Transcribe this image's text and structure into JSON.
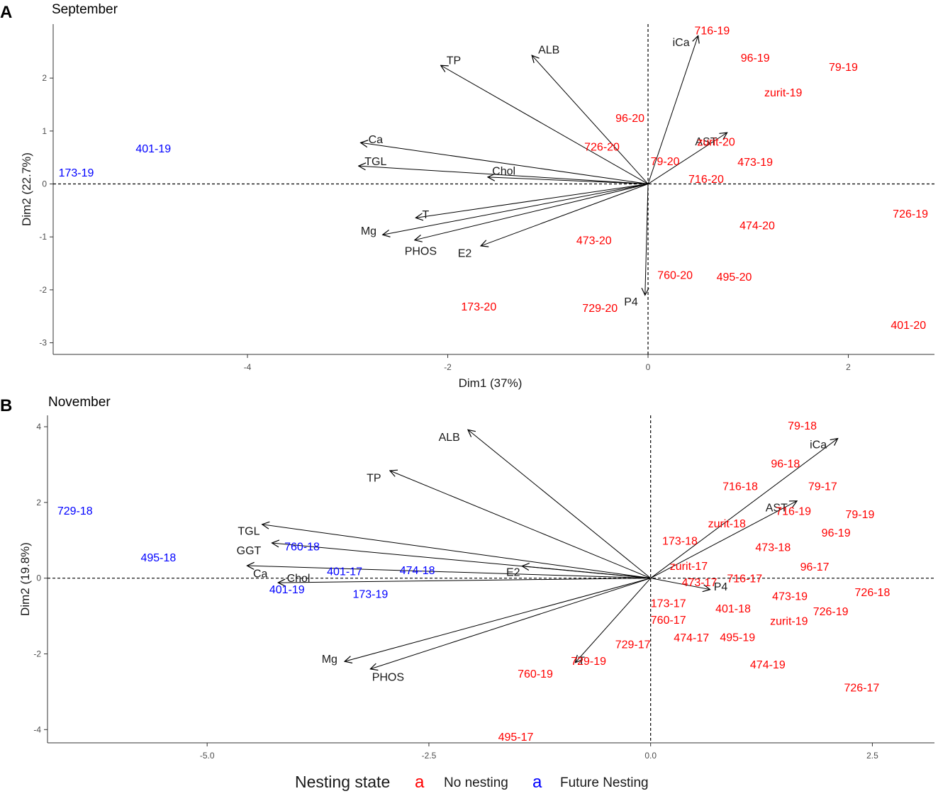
{
  "colors": {
    "no_nesting": "#ff0000",
    "future_nesting": "#0000ff",
    "arrow": "#000000"
  },
  "legend": {
    "title": "Nesting state",
    "key_glyph": "a",
    "items": [
      {
        "label": "No nesting",
        "color": "#ff0000"
      },
      {
        "label": "Future Nesting",
        "color": "#0000ff"
      }
    ]
  },
  "chart_data": [
    {
      "type": "scatter",
      "panel_letter": "A",
      "title": "September",
      "xlabel": "Dim1 (37%)",
      "ylabel": "Dim2 (22.7%)",
      "xlim": [
        -5.94,
        2.86
      ],
      "ylim": [
        -3.22,
        3.02
      ],
      "xticks": [
        -4,
        -2,
        0,
        2
      ],
      "xtick_labels": [
        "-4",
        "-2",
        "0",
        "2"
      ],
      "yticks": [
        -3,
        -2,
        -1,
        0,
        1,
        2
      ],
      "ytick_labels": [
        "-3",
        "-2",
        "-1",
        "0",
        "1",
        "2"
      ],
      "variables": [
        {
          "name": "iCa",
          "x": 0.5,
          "y": 2.8,
          "lx": 0.33,
          "ly": 2.67
        },
        {
          "name": "ALB",
          "x": -1.16,
          "y": 2.43,
          "lx": -0.99,
          "ly": 2.53
        },
        {
          "name": "TP",
          "x": -2.07,
          "y": 2.24,
          "lx": -1.94,
          "ly": 2.33
        },
        {
          "name": "Ca",
          "x": -2.87,
          "y": 0.78,
          "lx": -2.72,
          "ly": 0.84
        },
        {
          "name": "TGL",
          "x": -2.89,
          "y": 0.34,
          "lx": -2.72,
          "ly": 0.42
        },
        {
          "name": "Chol",
          "x": -1.6,
          "y": 0.13,
          "lx": -1.44,
          "ly": 0.24
        },
        {
          "name": "AST",
          "x": 0.79,
          "y": 0.97,
          "lx": 0.58,
          "ly": 0.8
        },
        {
          "name": "T",
          "x": -2.32,
          "y": -0.64,
          "lx": -2.22,
          "ly": -0.58
        },
        {
          "name": "Mg",
          "x": -2.65,
          "y": -0.96,
          "lx": -2.79,
          "ly": -0.89
        },
        {
          "name": "PHOS",
          "x": -2.33,
          "y": -1.06,
          "lx": -2.27,
          "ly": -1.27
        },
        {
          "name": "E2",
          "x": -1.67,
          "y": -1.17,
          "lx": -1.83,
          "ly": -1.31
        },
        {
          "name": "P4",
          "x": -0.03,
          "y": -2.1,
          "lx": -0.17,
          "ly": -2.23
        }
      ],
      "observations": [
        {
          "label": "716-19",
          "x": 0.64,
          "y": 2.89,
          "group": "No nesting"
        },
        {
          "label": "96-19",
          "x": 1.07,
          "y": 2.38,
          "group": "No nesting"
        },
        {
          "label": "79-19",
          "x": 1.95,
          "y": 2.2,
          "group": "No nesting"
        },
        {
          "label": "zurit-19",
          "x": 1.35,
          "y": 1.72,
          "group": "No nesting"
        },
        {
          "name_hint": "",
          "label": "96-20",
          "x": -0.18,
          "y": 1.24,
          "group": "No nesting"
        },
        {
          "label": "726-20",
          "x": -0.46,
          "y": 0.7,
          "group": "No nesting"
        },
        {
          "label": "zurit-20",
          "x": 0.68,
          "y": 0.79,
          "group": "No nesting"
        },
        {
          "label": "79-20",
          "x": 0.17,
          "y": 0.42,
          "group": "No nesting"
        },
        {
          "label": "473-19",
          "x": 1.07,
          "y": 0.41,
          "group": "No nesting"
        },
        {
          "label": "716-20",
          "x": 0.58,
          "y": 0.09,
          "group": "No nesting"
        },
        {
          "label": "726-19",
          "x": 2.62,
          "y": -0.57,
          "group": "No nesting"
        },
        {
          "label": "474-20",
          "x": 1.09,
          "y": -0.79,
          "group": "No nesting"
        },
        {
          "label": "473-20",
          "x": -0.54,
          "y": -1.07,
          "group": "No nesting"
        },
        {
          "label": "760-20",
          "x": 0.27,
          "y": -1.73,
          "group": "No nesting"
        },
        {
          "label": "495-20",
          "x": 0.86,
          "y": -1.76,
          "group": "No nesting"
        },
        {
          "label": "173-20",
          "x": -1.69,
          "y": -2.32,
          "group": "No nesting"
        },
        {
          "label": "729-20",
          "x": -0.48,
          "y": -2.35,
          "group": "No nesting"
        },
        {
          "label": "401-20",
          "x": 2.6,
          "y": -2.67,
          "group": "No nesting"
        },
        {
          "label": "401-19",
          "x": -4.94,
          "y": 0.66,
          "group": "Future Nesting"
        },
        {
          "label": "173-19",
          "x": -5.71,
          "y": 0.21,
          "group": "Future Nesting"
        }
      ]
    },
    {
      "type": "scatter",
      "panel_letter": "B",
      "title": "November",
      "xlabel": "",
      "ylabel": "Dim2 (19.8%)",
      "xlim": [
        -6.8,
        3.2
      ],
      "ylim": [
        -4.35,
        4.3
      ],
      "xticks": [
        -5,
        -2.5,
        0,
        2.5
      ],
      "xtick_labels": [
        "-5.0",
        "-2.5",
        "0.0",
        "2.5"
      ],
      "yticks": [
        -4,
        -2,
        0,
        2,
        4
      ],
      "ytick_labels": [
        "-4",
        "-2",
        "0",
        "2",
        "4"
      ],
      "variables": [
        {
          "name": "iCa",
          "x": 2.11,
          "y": 3.69,
          "lx": 1.89,
          "ly": 3.52
        },
        {
          "name": "ALB",
          "x": -2.06,
          "y": 3.92,
          "lx": -2.27,
          "ly": 3.72
        },
        {
          "name": "TP",
          "x": -2.94,
          "y": 2.84,
          "lx": -3.12,
          "ly": 2.64
        },
        {
          "name": "TGL",
          "x": -4.38,
          "y": 1.42,
          "lx": -4.53,
          "ly": 1.24
        },
        {
          "name": "GGT",
          "x": -4.27,
          "y": 0.93,
          "lx": -4.53,
          "ly": 0.72
        },
        {
          "name": "Ca",
          "x": -4.55,
          "y": 0.33,
          "lx": -4.4,
          "ly": 0.12
        },
        {
          "name": "Chol",
          "x": -4.2,
          "y": -0.12,
          "lx": -3.97,
          "ly": -0.01
        },
        {
          "name": "E2",
          "x": -1.45,
          "y": 0.32,
          "lx": -1.55,
          "ly": 0.15
        },
        {
          "name": "AST",
          "x": 1.65,
          "y": 2.04,
          "lx": 1.42,
          "ly": 1.86
        },
        {
          "name": "P4",
          "x": 0.67,
          "y": -0.3,
          "lx": 0.79,
          "ly": -0.23
        },
        {
          "name": "Mg",
          "x": -3.45,
          "y": -2.2,
          "lx": -3.62,
          "ly": -2.14
        },
        {
          "name": "PHOS",
          "x": -3.16,
          "y": -2.4,
          "lx": -2.96,
          "ly": -2.62
        },
        {
          "name": "T",
          "x": -0.85,
          "y": -2.23,
          "lx": -0.78,
          "ly": -2.19
        }
      ],
      "observations": [
        {
          "label": "79-18",
          "x": 1.71,
          "y": 4.02,
          "group": "No nesting"
        },
        {
          "label": "96-18",
          "x": 1.52,
          "y": 3.02,
          "group": "No nesting"
        },
        {
          "label": "716-18",
          "x": 1.01,
          "y": 2.42,
          "group": "No nesting"
        },
        {
          "label": "79-17",
          "x": 1.94,
          "y": 2.42,
          "group": "No nesting"
        },
        {
          "label": "716-19",
          "x": 1.61,
          "y": 1.76,
          "group": "No nesting"
        },
        {
          "label": "79-19",
          "x": 2.36,
          "y": 1.68,
          "group": "No nesting"
        },
        {
          "label": "zurit-18",
          "x": 0.86,
          "y": 1.44,
          "group": "No nesting"
        },
        {
          "label": "96-19",
          "x": 2.09,
          "y": 1.19,
          "group": "No nesting"
        },
        {
          "label": "173-18",
          "x": 0.33,
          "y": 0.98,
          "group": "No nesting"
        },
        {
          "label": "473-18",
          "x": 1.38,
          "y": 0.81,
          "group": "No nesting"
        },
        {
          "label": "zurit-17",
          "x": 0.43,
          "y": 0.31,
          "group": "No nesting"
        },
        {
          "label": "96-17",
          "x": 1.85,
          "y": 0.29,
          "group": "No nesting"
        },
        {
          "label": "716-17",
          "x": 1.06,
          "y": -0.02,
          "group": "No nesting"
        },
        {
          "label": "473-17",
          "x": 0.55,
          "y": -0.12,
          "group": "No nesting"
        },
        {
          "label": "726-18",
          "x": 2.5,
          "y": -0.38,
          "group": "No nesting"
        },
        {
          "label": "473-19",
          "x": 1.57,
          "y": -0.48,
          "group": "No nesting"
        },
        {
          "label": "173-17",
          "x": 0.2,
          "y": -0.67,
          "group": "No nesting"
        },
        {
          "label": "401-18",
          "x": 0.93,
          "y": -0.81,
          "group": "No nesting"
        },
        {
          "label": "726-19",
          "x": 2.03,
          "y": -0.89,
          "group": "No nesting"
        },
        {
          "label": "760-17",
          "x": 0.2,
          "y": -1.11,
          "group": "No nesting"
        },
        {
          "label": "zurit-19",
          "x": 1.56,
          "y": -1.14,
          "group": "No nesting"
        },
        {
          "label": "474-17",
          "x": 0.46,
          "y": -1.58,
          "group": "No nesting"
        },
        {
          "label": "495-19",
          "x": 0.98,
          "y": -1.57,
          "group": "No nesting"
        },
        {
          "label": "729-17",
          "x": -0.2,
          "y": -1.76,
          "group": "No nesting"
        },
        {
          "label": "729-19",
          "x": -0.7,
          "y": -2.2,
          "group": "No nesting"
        },
        {
          "label": "474-19",
          "x": 1.32,
          "y": -2.29,
          "group": "No nesting"
        },
        {
          "label": "760-19",
          "x": -1.3,
          "y": -2.53,
          "group": "No nesting"
        },
        {
          "label": "726-17",
          "x": 2.38,
          "y": -2.9,
          "group": "No nesting"
        },
        {
          "label": "495-17",
          "x": -1.52,
          "y": -4.2,
          "group": "No nesting"
        },
        {
          "label": "729-18",
          "x": -6.49,
          "y": 1.77,
          "group": "Future Nesting"
        },
        {
          "label": "495-18",
          "x": -5.55,
          "y": 0.54,
          "group": "Future Nesting"
        },
        {
          "label": "760-18",
          "x": -3.93,
          "y": 0.83,
          "group": "Future Nesting"
        },
        {
          "label": "401-17",
          "x": -3.45,
          "y": 0.17,
          "group": "Future Nesting"
        },
        {
          "label": "474-18",
          "x": -2.63,
          "y": 0.2,
          "group": "Future Nesting"
        },
        {
          "label": "401-19",
          "x": -4.1,
          "y": -0.31,
          "group": "Future Nesting"
        },
        {
          "label": "173-19",
          "x": -3.16,
          "y": -0.43,
          "group": "Future Nesting"
        }
      ]
    }
  ]
}
